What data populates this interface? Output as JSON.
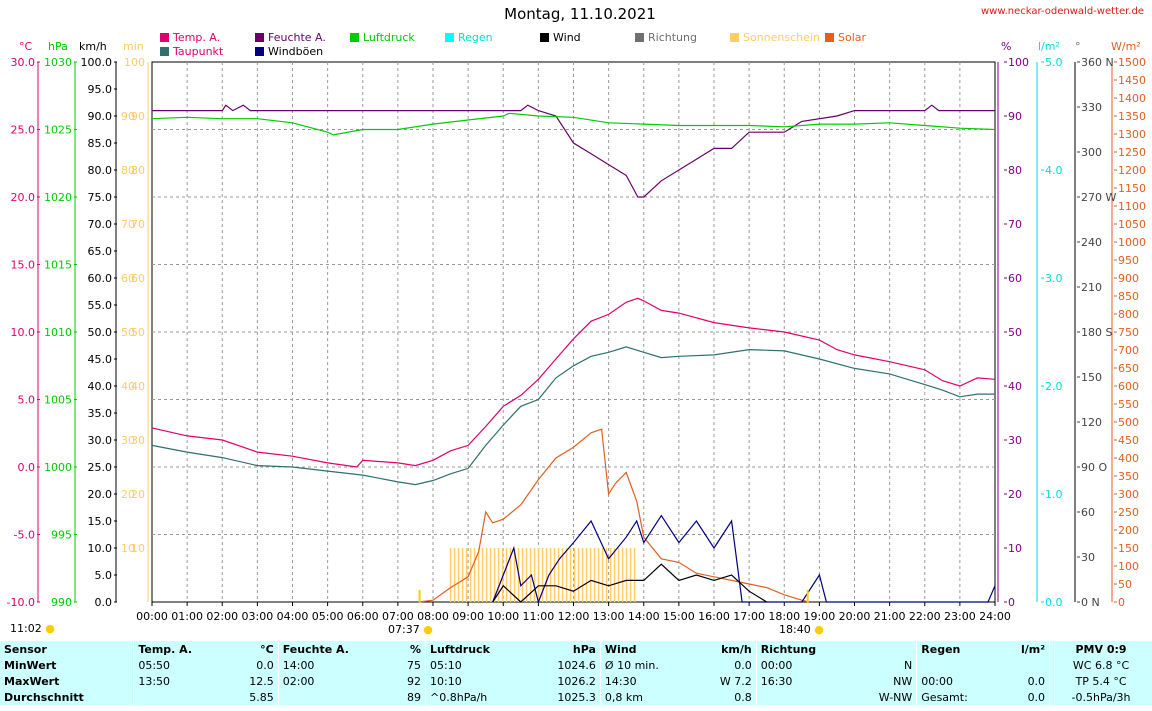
{
  "title": "Montag, 11.10.2021",
  "site": "www.neckar-odenwald-wetter.de",
  "legend": [
    {
      "label": "Temp. A.",
      "color": "#e0006e"
    },
    {
      "label": "Taupunkt",
      "color": "#2f6f6f"
    },
    {
      "label": "Feuchte A.",
      "color": "#6a006a"
    },
    {
      "label": "Windböen",
      "color": "#000080"
    },
    {
      "label": "Luftdruck",
      "color": "#00cc00"
    },
    {
      "label": "Regen",
      "color": "#00dddd"
    },
    {
      "label": "Wind",
      "color": "#000000"
    },
    {
      "label": "Richtung",
      "color": "#707070"
    },
    {
      "label": "Sonnenschein",
      "color": "#ffcc66"
    },
    {
      "label": "Solar",
      "color": "#e06020"
    }
  ],
  "units": {
    "temp": "°C",
    "hpa": "hPa",
    "kmh": "km/h",
    "min": "min",
    "pct": "%",
    "rain": "l/m²",
    "dir": "°",
    "solar": "W/m²"
  },
  "sun": {
    "sunrise_top": "11:02",
    "sunrise": "07:37",
    "sunset": "18:40"
  },
  "chart_data": {
    "type": "line",
    "x_label_ticks": [
      "00:00",
      "01:00",
      "02:00",
      "03:00",
      "04:00",
      "05:00",
      "06:00",
      "07:00",
      "08:00",
      "09:00",
      "10:00",
      "11:00",
      "12:00",
      "13:00",
      "14:00",
      "15:00",
      "16:00",
      "17:00",
      "18:00",
      "19:00",
      "20:00",
      "21:00",
      "22:00",
      "23:00",
      "24:00"
    ],
    "x_range_hours": [
      0,
      24
    ],
    "axes": {
      "temp_c": {
        "ticks": [
          "30.0",
          "25.0",
          "20.0",
          "15.0",
          "10.0",
          "5.0",
          "0.0",
          "-5.0",
          "-10.0"
        ],
        "ylim": [
          -10,
          30
        ]
      },
      "pressure_hpa": {
        "ticks": [
          "1030",
          "1025",
          "1020",
          "1015",
          "1010",
          "1005",
          "1000",
          "995",
          "990"
        ],
        "ylim": [
          990,
          1030
        ]
      },
      "wind_kmh": {
        "ticks": [
          "100.0",
          "95.0",
          "90.0",
          "85.0",
          "80.0",
          "75.0",
          "70.0",
          "65.0",
          "60.0",
          "55.0",
          "50.0",
          "45.0",
          "40.0",
          "35.0",
          "30.0",
          "25.0",
          "20.0",
          "15.0",
          "10.0",
          "5.0",
          "0.0"
        ],
        "ylim": [
          0,
          100
        ]
      },
      "sun_min": {
        "ticks": [
          "100",
          "90",
          "80",
          "70",
          "60",
          "50",
          "40",
          "30",
          "20",
          "10"
        ],
        "ylim": [
          0,
          100
        ]
      },
      "humidity_pct": {
        "ticks": [
          "100",
          "90",
          "80",
          "70",
          "60",
          "50",
          "40",
          "30",
          "20",
          "10",
          "0"
        ],
        "ylim": [
          0,
          100
        ]
      },
      "rain_lm2": {
        "ticks": [
          "5.0",
          "4.0",
          "3.0",
          "2.0",
          "1.0",
          "0.0"
        ],
        "ylim": [
          0,
          5
        ]
      },
      "direction_deg": {
        "ticks": [
          "360 N",
          "330",
          "300",
          "270 W",
          "240",
          "210",
          "180 S",
          "150",
          "120",
          "90 O",
          "60",
          "30",
          "0 N"
        ],
        "ylim": [
          0,
          360
        ]
      },
      "solar_wm2": {
        "ticks": [
          "1500",
          "1450",
          "1400",
          "1350",
          "1300",
          "1250",
          "1200",
          "1150",
          "1100",
          "1050",
          "1000",
          "950",
          "900",
          "850",
          "800",
          "750",
          "700",
          "650",
          "600",
          "550",
          "500",
          "450",
          "400",
          "350",
          "300",
          "250",
          "200",
          "150",
          "100",
          "50",
          "0"
        ],
        "ylim": [
          0,
          1500
        ]
      }
    },
    "series": [
      {
        "name": "Temp. A.",
        "unit": "°C",
        "points": [
          [
            0,
            2.9
          ],
          [
            1,
            2.3
          ],
          [
            2,
            2.0
          ],
          [
            3,
            1.1
          ],
          [
            4,
            0.8
          ],
          [
            5,
            0.3
          ],
          [
            5.83,
            0.0
          ],
          [
            6,
            0.5
          ],
          [
            7,
            0.3
          ],
          [
            7.5,
            0.1
          ],
          [
            8,
            0.5
          ],
          [
            8.5,
            1.2
          ],
          [
            9,
            1.6
          ],
          [
            9.5,
            3.0
          ],
          [
            10,
            4.5
          ],
          [
            10.5,
            5.3
          ],
          [
            11,
            6.5
          ],
          [
            11.5,
            8.0
          ],
          [
            12,
            9.5
          ],
          [
            12.5,
            10.8
          ],
          [
            13,
            11.3
          ],
          [
            13.5,
            12.2
          ],
          [
            13.83,
            12.5
          ],
          [
            14,
            12.3
          ],
          [
            14.5,
            11.6
          ],
          [
            15,
            11.4
          ],
          [
            16,
            10.7
          ],
          [
            17,
            10.3
          ],
          [
            18,
            10.0
          ],
          [
            19,
            9.4
          ],
          [
            19.5,
            8.7
          ],
          [
            20,
            8.3
          ],
          [
            21,
            7.8
          ],
          [
            22,
            7.2
          ],
          [
            22.5,
            6.4
          ],
          [
            23,
            6.0
          ],
          [
            23.5,
            6.6
          ],
          [
            24,
            6.5
          ]
        ]
      },
      {
        "name": "Taupunkt",
        "unit": "°C",
        "points": [
          [
            0,
            1.6
          ],
          [
            1,
            1.1
          ],
          [
            2,
            0.7
          ],
          [
            3,
            0.1
          ],
          [
            4,
            0.0
          ],
          [
            5,
            -0.3
          ],
          [
            6,
            -0.6
          ],
          [
            7,
            -1.1
          ],
          [
            7.5,
            -1.3
          ],
          [
            8,
            -1.0
          ],
          [
            8.5,
            -0.5
          ],
          [
            9,
            -0.1
          ],
          [
            9.5,
            1.6
          ],
          [
            10,
            3.1
          ],
          [
            10.5,
            4.5
          ],
          [
            11,
            5.0
          ],
          [
            11.5,
            6.6
          ],
          [
            12,
            7.5
          ],
          [
            12.5,
            8.2
          ],
          [
            13,
            8.5
          ],
          [
            13.5,
            8.9
          ],
          [
            14,
            8.5
          ],
          [
            14.5,
            8.1
          ],
          [
            15,
            8.2
          ],
          [
            16,
            8.3
          ],
          [
            17,
            8.7
          ],
          [
            18,
            8.6
          ],
          [
            19,
            8.0
          ],
          [
            20,
            7.3
          ],
          [
            21,
            6.9
          ],
          [
            22,
            6.1
          ],
          [
            22.5,
            5.7
          ],
          [
            23,
            5.2
          ],
          [
            23.5,
            5.4
          ],
          [
            24,
            5.4
          ]
        ]
      },
      {
        "name": "Feuchte A.",
        "unit": "%",
        "points": [
          [
            0,
            91
          ],
          [
            2,
            91
          ],
          [
            2.1,
            92
          ],
          [
            2.3,
            91
          ],
          [
            2.6,
            92
          ],
          [
            2.8,
            91
          ],
          [
            10.5,
            91
          ],
          [
            10.7,
            92
          ],
          [
            11,
            91
          ],
          [
            11.5,
            90
          ],
          [
            12,
            85
          ],
          [
            12.5,
            83
          ],
          [
            13,
            81
          ],
          [
            13.5,
            79
          ],
          [
            13.83,
            75
          ],
          [
            14,
            75
          ],
          [
            14.5,
            78
          ],
          [
            15,
            80
          ],
          [
            15.5,
            82
          ],
          [
            16,
            84
          ],
          [
            16.5,
            84
          ],
          [
            17,
            87
          ],
          [
            18,
            87
          ],
          [
            18.5,
            89
          ],
          [
            19.5,
            90
          ],
          [
            20,
            91
          ],
          [
            22,
            91
          ],
          [
            22.2,
            92
          ],
          [
            22.4,
            91
          ],
          [
            24,
            91
          ]
        ]
      },
      {
        "name": "Luftdruck",
        "unit": "hPa",
        "points": [
          [
            0,
            1025.8
          ],
          [
            1,
            1025.9
          ],
          [
            2,
            1025.8
          ],
          [
            3,
            1025.8
          ],
          [
            4,
            1025.5
          ],
          [
            5,
            1024.8
          ],
          [
            5.17,
            1024.6
          ],
          [
            6,
            1025.0
          ],
          [
            7,
            1025.0
          ],
          [
            8,
            1025.4
          ],
          [
            9,
            1025.7
          ],
          [
            10,
            1026.0
          ],
          [
            10.17,
            1026.2
          ],
          [
            11,
            1026.0
          ],
          [
            12,
            1025.9
          ],
          [
            13,
            1025.5
          ],
          [
            14,
            1025.4
          ],
          [
            15,
            1025.3
          ],
          [
            16,
            1025.3
          ],
          [
            17,
            1025.3
          ],
          [
            18,
            1025.2
          ],
          [
            19,
            1025.4
          ],
          [
            20,
            1025.4
          ],
          [
            21,
            1025.5
          ],
          [
            22,
            1025.3
          ],
          [
            23,
            1025.1
          ],
          [
            24,
            1025.0
          ]
        ]
      },
      {
        "name": "Solar",
        "unit": "W/m²",
        "points": [
          [
            7.6,
            0
          ],
          [
            8,
            5
          ],
          [
            8.5,
            40
          ],
          [
            9,
            70
          ],
          [
            9.3,
            140
          ],
          [
            9.5,
            250
          ],
          [
            9.7,
            220
          ],
          [
            10,
            230
          ],
          [
            10.5,
            270
          ],
          [
            11,
            340
          ],
          [
            11.5,
            400
          ],
          [
            12,
            430
          ],
          [
            12.5,
            470
          ],
          [
            12.8,
            480
          ],
          [
            13,
            300
          ],
          [
            13.2,
            330
          ],
          [
            13.5,
            360
          ],
          [
            13.8,
            280
          ],
          [
            14,
            180
          ],
          [
            14.5,
            120
          ],
          [
            15,
            110
          ],
          [
            15.5,
            80
          ],
          [
            16,
            70
          ],
          [
            16.5,
            60
          ],
          [
            17,
            50
          ],
          [
            17.5,
            40
          ],
          [
            18,
            20
          ],
          [
            18.5,
            5
          ],
          [
            18.7,
            0
          ]
        ]
      },
      {
        "name": "Windböen",
        "unit": "km/h",
        "points": [
          [
            9.7,
            0
          ],
          [
            10,
            5
          ],
          [
            10.3,
            10
          ],
          [
            10.5,
            3
          ],
          [
            10.8,
            5
          ],
          [
            11,
            0
          ],
          [
            11.3,
            5
          ],
          [
            11.6,
            8
          ],
          [
            12,
            11
          ],
          [
            12.5,
            15
          ],
          [
            13,
            8
          ],
          [
            13.5,
            12
          ],
          [
            13.8,
            15
          ],
          [
            14,
            11
          ],
          [
            14.5,
            16
          ],
          [
            15,
            11
          ],
          [
            15.5,
            15
          ],
          [
            16,
            10
          ],
          [
            16.5,
            15
          ],
          [
            16.8,
            0
          ],
          [
            18.5,
            0
          ],
          [
            19,
            5
          ],
          [
            19.2,
            0
          ],
          [
            23.8,
            0
          ],
          [
            24,
            3
          ]
        ]
      },
      {
        "name": "Wind",
        "unit": "km/h",
        "points": [
          [
            9.7,
            0
          ],
          [
            10,
            3
          ],
          [
            10.5,
            0
          ],
          [
            11,
            3
          ],
          [
            11.5,
            3
          ],
          [
            12,
            2
          ],
          [
            12.5,
            4
          ],
          [
            13,
            3
          ],
          [
            13.5,
            4
          ],
          [
            14,
            4
          ],
          [
            14.5,
            7
          ],
          [
            15,
            4
          ],
          [
            15.5,
            5
          ],
          [
            16,
            4
          ],
          [
            16.5,
            5
          ],
          [
            17,
            2
          ],
          [
            17.5,
            0
          ]
        ]
      },
      {
        "name": "Sonnenschein",
        "unit": "min",
        "points": [
          [
            8.5,
            10
          ],
          [
            12.5,
            10
          ],
          [
            13.8,
            10
          ],
          [
            14,
            0
          ]
        ]
      }
    ],
    "summary": {
      "min_temp": "0.0",
      "max_temp": "12.5",
      "avg_temp": "5.85",
      "min_humidity": "75",
      "max_humidity": "92",
      "avg_humidity": "89",
      "min_pressure": "1024.6",
      "max_pressure": "1026.2",
      "avg_pressure": "1025.3"
    }
  },
  "table": {
    "headers": [
      "Sensor",
      "Temp. A.",
      "°C",
      "Feuchte A.",
      "%",
      "Luftdruck",
      "hPa",
      "Wind",
      "km/h",
      "Richtung",
      "Regen",
      "l/m²",
      "PMV 0:9"
    ],
    "rows": [
      [
        "MinWert",
        "05:50",
        "0.0",
        "14:00",
        "75",
        "05:10",
        "1024.6",
        "Ø 10 min.",
        "0.0",
        "00:00",
        "N",
        "",
        "",
        "WC 6.8 °C"
      ],
      [
        "MaxWert",
        "13:50",
        "12.5",
        "02:00",
        "92",
        "10:10",
        "1026.2",
        "14:30",
        "W 7.2",
        "16:30",
        "NW",
        "00:00",
        "0.0",
        "TP 5.4 °C"
      ],
      [
        "Durchschnitt",
        "",
        "5.85",
        "",
        "89",
        "^0.8hPa/h",
        "1025.3",
        "0,8 km",
        "0.8",
        "",
        "W-NW",
        "Gesamt:",
        "0.0",
        "-0.5hPa/3h"
      ]
    ]
  }
}
